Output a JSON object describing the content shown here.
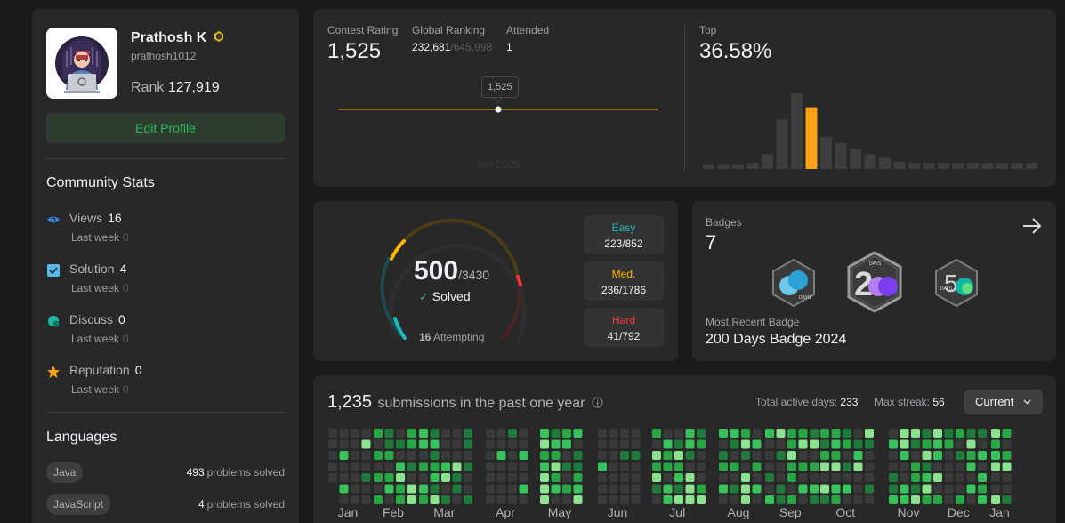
{
  "profile": {
    "name": "Prathosh K",
    "username": "prathosh1012",
    "rank_label": "Rank",
    "rank_value": "127,919",
    "edit_label": "Edit Profile"
  },
  "community": {
    "title": "Community Stats",
    "items": [
      {
        "label": "Views",
        "value": "16",
        "last_week_label": "Last week",
        "last_week": "0",
        "icon": "eye-icon",
        "color": "#2f8bf0"
      },
      {
        "label": "Solution",
        "value": "4",
        "last_week_label": "Last week",
        "last_week": "0",
        "icon": "solution-check-icon",
        "color": "#5ab9ea"
      },
      {
        "label": "Discuss",
        "value": "0",
        "last_week_label": "Last week",
        "last_week": "0",
        "icon": "discuss-icon",
        "color": "#18b7a0"
      },
      {
        "label": "Reputation",
        "value": "0",
        "last_week_label": "Last week",
        "last_week": "0",
        "icon": "star-icon",
        "color": "#ffa116"
      }
    ]
  },
  "languages": {
    "title": "Languages",
    "items": [
      {
        "name": "Java",
        "count": "493",
        "suffix": "problems solved"
      },
      {
        "name": "JavaScript",
        "count": "4",
        "suffix": "problems solved"
      }
    ]
  },
  "contest": {
    "rating_label": "Contest Rating",
    "rating": "1,525",
    "global_label": "Global Ranking",
    "global_rank": "232,681",
    "global_total": "/645,998",
    "attended_label": "Attended",
    "attended": "1",
    "tooltip": "1,525",
    "tick": "Jan 2025",
    "top_label": "Top",
    "top_value": "36.58%",
    "line_color": "#b8860b",
    "histogram": [
      4,
      4,
      4,
      5,
      12,
      40,
      62,
      50,
      26,
      21,
      16,
      12,
      9,
      6,
      5,
      5,
      5,
      5,
      5,
      5,
      5,
      5,
      5,
      5,
      5,
      5,
      5,
      5,
      4
    ],
    "highlight_index": 7,
    "highlight_color": "#ffa116"
  },
  "solved": {
    "count": "500",
    "total": "/3430",
    "solved_label": "Solved",
    "attempting_count": "16",
    "attempting_label": "Attempting",
    "difficulties": [
      {
        "name": "Easy",
        "value": "223/852",
        "color": "#1cbaba"
      },
      {
        "name": "Med.",
        "value": "236/1786",
        "color": "#ffb700"
      },
      {
        "name": "Hard",
        "value": "41/792",
        "color": "#f63737"
      }
    ]
  },
  "badges": {
    "label": "Badges",
    "count": "7",
    "recent_label": "Most Recent Badge",
    "recent_name": "200 Days Badge 2024"
  },
  "submissions": {
    "count": "1,235",
    "text": "submissions in the past one year",
    "active_label": "Total active days:",
    "active_value": "233",
    "streak_label": "Max streak:",
    "streak_value": "56",
    "dropdown": "Current",
    "months": [
      "Jan",
      "Feb",
      "Mar",
      "Apr",
      "May",
      "Jun",
      "Jul",
      "Aug",
      "Sep",
      "Oct",
      "Nov",
      "Dec",
      "Jan"
    ]
  }
}
